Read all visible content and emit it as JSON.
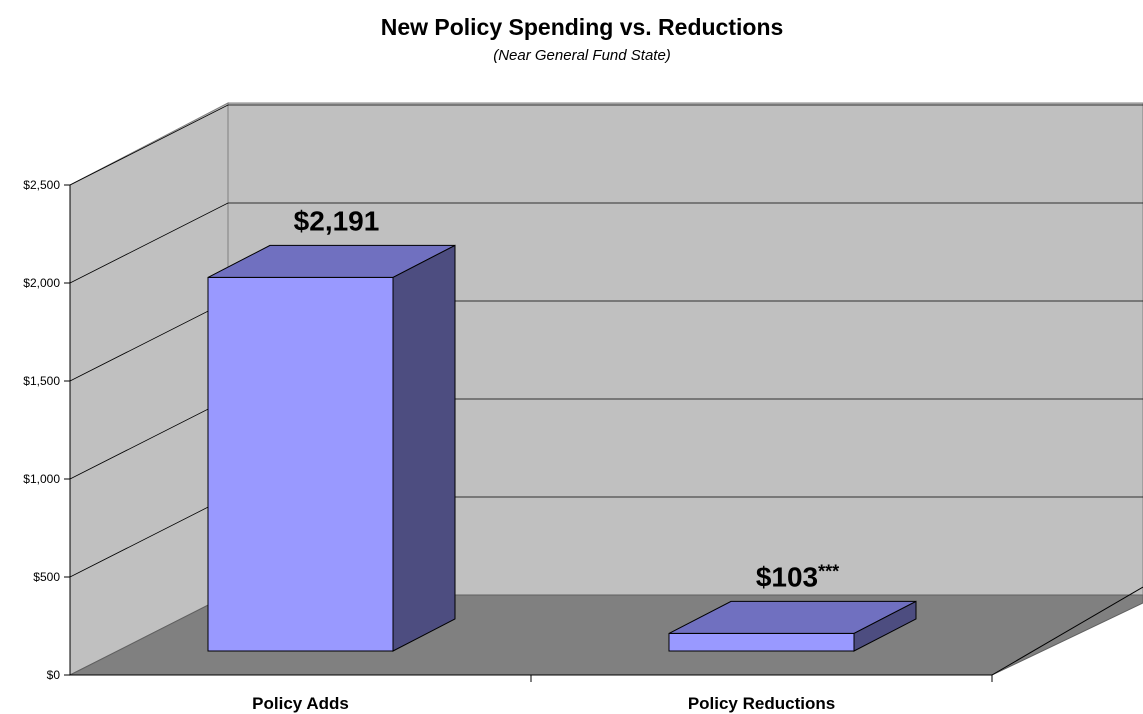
{
  "chart_data": {
    "type": "bar",
    "title": "New Policy Spending vs. Reductions",
    "subtitle": "(Near General Fund State)",
    "categories": [
      "Policy Adds",
      "Policy Reductions"
    ],
    "values": [
      2191,
      103
    ],
    "data_labels": [
      "$2,191",
      "$103"
    ],
    "data_label_suffixes": [
      "",
      "***"
    ],
    "y_ticks": [
      "$0",
      "$500",
      "$1,000",
      "$1,500",
      "$2,000",
      "$2,500"
    ],
    "ylim": [
      0,
      2500
    ],
    "grid": true,
    "three_d": true,
    "colors": {
      "bar_front": "#9999ff",
      "bar_top": "#7070c0",
      "bar_side": "#4d4d80",
      "back_wall": "#c0c0c0",
      "side_wall": "#c0c0c0",
      "floor": "#808080"
    }
  }
}
